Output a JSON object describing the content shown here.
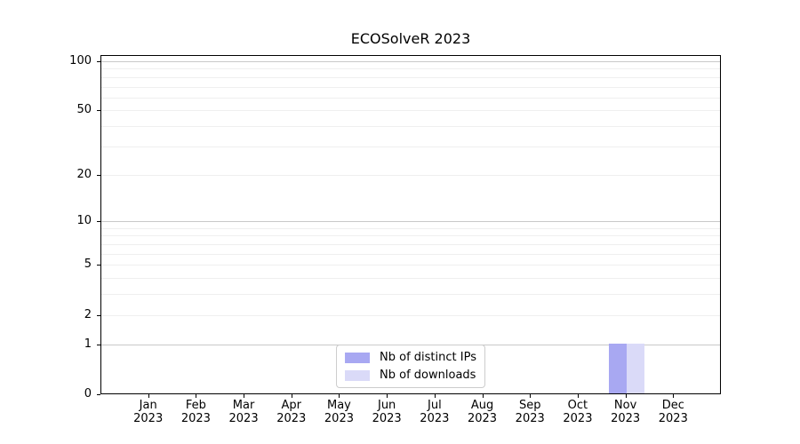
{
  "chart_data": {
    "type": "bar",
    "title": "ECOSolveR 2023",
    "categories": [
      "Jan",
      "Feb",
      "Mar",
      "Apr",
      "May",
      "Jun",
      "Jul",
      "Aug",
      "Sep",
      "Oct",
      "Nov",
      "Dec"
    ],
    "x_year": "2023",
    "series": [
      {
        "name": "Nb of distinct IPs",
        "color": "#a8a8f2",
        "values": [
          0,
          0,
          0,
          0,
          0,
          0,
          0,
          0,
          0,
          0,
          1,
          0
        ]
      },
      {
        "name": "Nb of downloads",
        "color": "#dadaf8",
        "values": [
          0,
          0,
          0,
          0,
          0,
          0,
          0,
          0,
          0,
          0,
          1,
          0
        ]
      }
    ],
    "y_scale": "log1p",
    "ylim": [
      0,
      109
    ],
    "y_ticks": [
      0,
      1,
      2,
      5,
      10,
      20,
      50,
      100
    ],
    "y_tick_labels": [
      "0",
      "1",
      "2",
      "5",
      "10",
      "20",
      "50",
      "100"
    ],
    "y_gridlines_major": [
      1,
      10,
      100
    ],
    "y_gridlines_minor": [
      2,
      3,
      4,
      5,
      6,
      7,
      8,
      9,
      20,
      30,
      40,
      50,
      60,
      70,
      80,
      90
    ],
    "grid": "horizontal",
    "legend_position": "lower center",
    "colors": {
      "major_gridline": "#c9c9c9",
      "minor_gridline": "#efefef",
      "axis": "#000000",
      "background": "#ffffff"
    }
  }
}
